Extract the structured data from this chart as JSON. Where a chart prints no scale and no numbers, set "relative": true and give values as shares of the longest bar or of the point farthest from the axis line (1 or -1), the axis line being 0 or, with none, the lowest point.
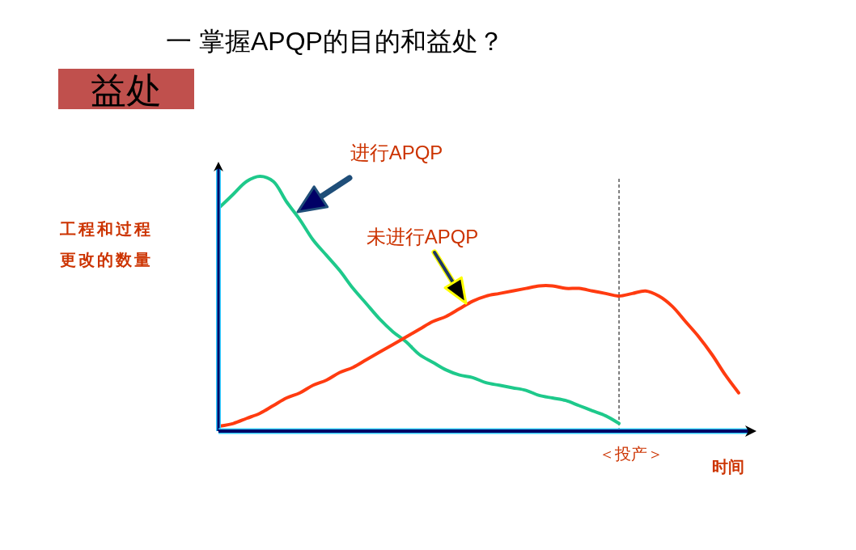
{
  "chart_data": {
    "type": "line",
    "title": "一 掌握APQP的目的和益处？",
    "subtitle": "益处",
    "xlabel": "时间",
    "ylabel": "工程和过程更改的数量",
    "relative": true,
    "categories": [
      null,
      null,
      null,
      null,
      null,
      null,
      null,
      null,
      null,
      null,
      null,
      null,
      null,
      null,
      null,
      null,
      null,
      null,
      null,
      null,
      null,
      null,
      null,
      null,
      null,
      null,
      null,
      null,
      null,
      null,
      null,
      null,
      null,
      null,
      null,
      null,
      null,
      null,
      null,
      null
    ],
    "series": [
      {
        "color": "#1ec98b",
        "values": [
          0.88,
          0.93,
          0.98,
          1,
          0.98,
          0.9,
          0.83,
          0.75,
          0.69,
          0.63,
          0.56,
          0.5,
          0.44,
          0.39,
          0.35,
          0.3,
          0.27,
          0.24,
          0.22,
          0.21,
          0.19,
          0.18,
          0.17,
          0.16,
          0.14,
          0.13,
          0.12,
          0.1,
          0.08,
          0.06,
          0.03,
          null,
          null,
          null,
          null,
          null,
          null,
          null,
          null,
          null
        ]
      },
      {
        "color": "#ff3b10",
        "values": [
          0.02,
          0.03,
          0.05,
          0.07,
          0.1,
          0.13,
          0.15,
          0.18,
          0.2,
          0.23,
          0.25,
          0.28,
          0.31,
          0.34,
          0.37,
          0.4,
          0.43,
          0.45,
          0.48,
          0.51,
          0.53,
          0.54,
          0.55,
          0.56,
          0.57,
          0.57,
          0.56,
          0.56,
          0.55,
          0.54,
          0.53,
          0.54,
          0.55,
          0.53,
          0.49,
          0.43,
          0.37,
          0.3,
          0.22,
          0.15
        ]
      }
    ],
    "annotations": [
      "进行APQP",
      "未进行APQP",
      "＜投产＞"
    ]
  }
}
